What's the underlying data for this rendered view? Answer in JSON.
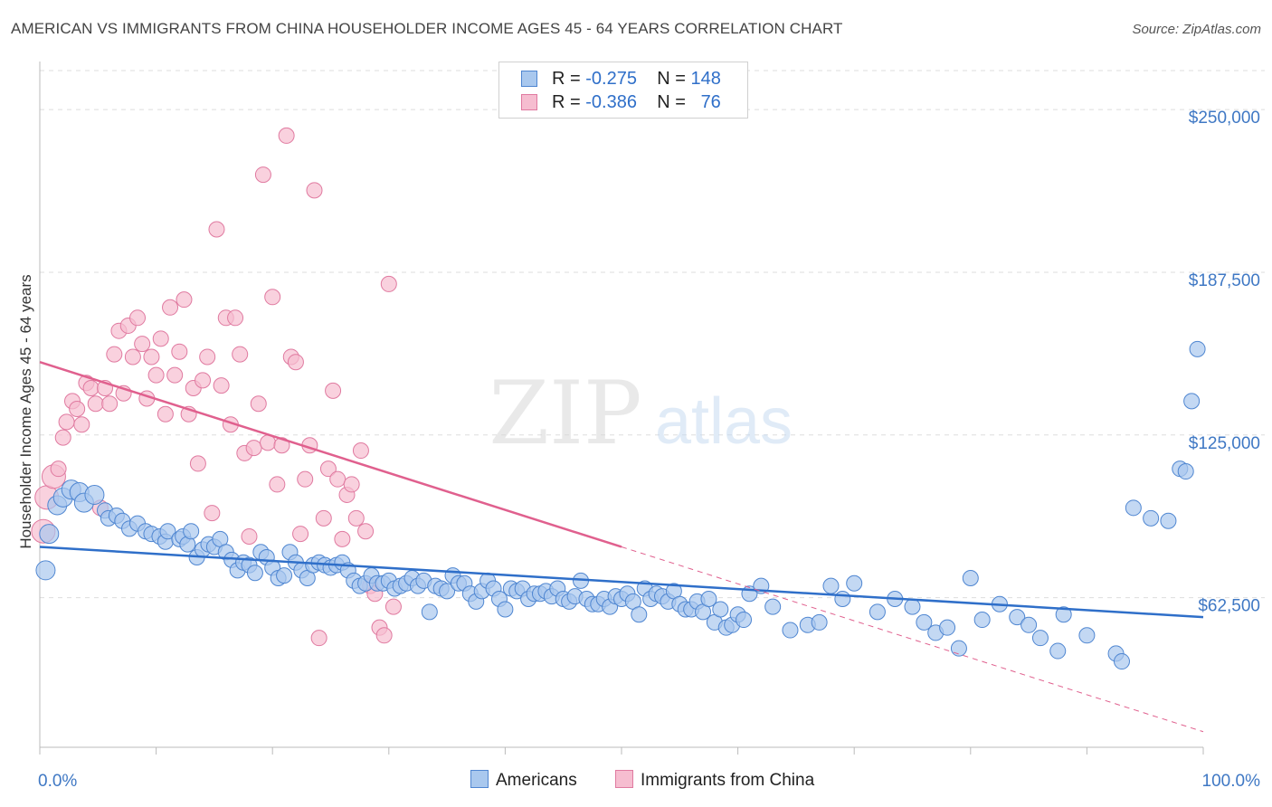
{
  "title": "AMERICAN VS IMMIGRANTS FROM CHINA HOUSEHOLDER INCOME AGES 45 - 64 YEARS CORRELATION CHART",
  "source": "Source: ZipAtlas.com",
  "watermark": {
    "zip": "ZIP",
    "atlas": "atlas"
  },
  "legend": {
    "r_label": "R =",
    "n_label": "N =",
    "rows": [
      {
        "name": "Americans",
        "r": "-0.275",
        "n": "148"
      },
      {
        "name": "Immigrants from China",
        "r": "-0.386",
        "n": "76"
      }
    ]
  },
  "colors": {
    "americans_fill": "#a9c8ee",
    "americans_stroke": "#4f86d1",
    "americans_line": "#2f6fc9",
    "china_fill": "#f6bdd0",
    "china_stroke": "#e07aa0",
    "china_line": "#e0608e",
    "tick_text": "#3f78c4",
    "grid": "#dddddd"
  },
  "chart_data": {
    "type": "scatter",
    "xlabel": "",
    "ylabel": "Householder Income Ages 45 - 64 years",
    "xlim": [
      0,
      100
    ],
    "ylim": [
      5000,
      265000
    ],
    "y_ticks": [
      62500,
      125000,
      187500,
      250000
    ],
    "y_tick_labels": [
      "$62,500",
      "$125,000",
      "$187,500",
      "$250,000"
    ],
    "x_tick_labels": [
      "0.0%",
      "100.0%"
    ],
    "grid": "horizontal dashed",
    "legend_position": "top-center",
    "series": [
      {
        "name": "Americans",
        "trend": {
          "x": [
            0,
            100
          ],
          "y": [
            82000,
            55000
          ]
        },
        "points": [
          [
            0.5,
            73
          ],
          [
            0.8,
            87
          ],
          [
            1.5,
            98
          ],
          [
            2.0,
            101
          ],
          [
            2.7,
            104
          ],
          [
            3.4,
            103
          ],
          [
            3.8,
            99
          ],
          [
            4.7,
            102
          ],
          [
            5.6,
            96
          ],
          [
            5.9,
            93
          ],
          [
            6.6,
            94
          ],
          [
            7.1,
            92
          ],
          [
            7.7,
            89
          ],
          [
            8.4,
            91
          ],
          [
            9.1,
            88
          ],
          [
            9.6,
            87
          ],
          [
            10.3,
            86
          ],
          [
            10.8,
            84
          ],
          [
            11.0,
            88
          ],
          [
            12.0,
            85
          ],
          [
            12.3,
            86
          ],
          [
            12.7,
            83
          ],
          [
            13.0,
            88
          ],
          [
            13.5,
            78
          ],
          [
            14.0,
            81
          ],
          [
            14.5,
            83
          ],
          [
            15.0,
            82
          ],
          [
            15.5,
            85
          ],
          [
            16.0,
            80
          ],
          [
            16.5,
            77
          ],
          [
            17.0,
            73
          ],
          [
            17.5,
            76
          ],
          [
            18.0,
            75
          ],
          [
            18.5,
            72
          ],
          [
            19.0,
            80
          ],
          [
            19.5,
            78
          ],
          [
            20.0,
            74
          ],
          [
            20.5,
            70
          ],
          [
            21.0,
            71
          ],
          [
            21.5,
            80
          ],
          [
            22.0,
            76
          ],
          [
            22.5,
            73
          ],
          [
            23.0,
            70
          ],
          [
            23.5,
            75
          ],
          [
            24.0,
            76
          ],
          [
            24.5,
            75
          ],
          [
            25.0,
            74
          ],
          [
            25.5,
            75
          ],
          [
            26.0,
            76
          ],
          [
            26.5,
            73
          ],
          [
            27.0,
            69
          ],
          [
            27.5,
            67
          ],
          [
            28.0,
            68
          ],
          [
            28.5,
            71
          ],
          [
            29.0,
            68
          ],
          [
            29.5,
            68
          ],
          [
            30.0,
            69
          ],
          [
            30.5,
            66
          ],
          [
            31.0,
            67
          ],
          [
            31.5,
            68
          ],
          [
            32.0,
            70
          ],
          [
            32.5,
            67
          ],
          [
            33.0,
            69
          ],
          [
            33.5,
            57
          ],
          [
            34.0,
            67
          ],
          [
            34.5,
            66
          ],
          [
            35.0,
            65
          ],
          [
            35.5,
            71
          ],
          [
            36.0,
            68
          ],
          [
            36.5,
            68
          ],
          [
            37.0,
            64
          ],
          [
            37.5,
            61
          ],
          [
            38.0,
            65
          ],
          [
            38.5,
            69
          ],
          [
            39.0,
            66
          ],
          [
            39.5,
            62
          ],
          [
            40.0,
            58
          ],
          [
            40.5,
            66
          ],
          [
            41.0,
            65
          ],
          [
            41.5,
            66
          ],
          [
            42.0,
            62
          ],
          [
            42.5,
            64
          ],
          [
            43.0,
            64
          ],
          [
            43.5,
            65
          ],
          [
            44.0,
            63
          ],
          [
            44.5,
            66
          ],
          [
            45.0,
            62
          ],
          [
            45.5,
            61
          ],
          [
            46.0,
            63
          ],
          [
            46.5,
            69
          ],
          [
            47.0,
            62
          ],
          [
            47.5,
            60
          ],
          [
            48.0,
            60
          ],
          [
            48.5,
            62
          ],
          [
            49.0,
            59
          ],
          [
            49.5,
            63
          ],
          [
            50.0,
            62
          ],
          [
            50.5,
            64
          ],
          [
            51.0,
            61
          ],
          [
            51.5,
            56
          ],
          [
            52.0,
            66
          ],
          [
            52.5,
            62
          ],
          [
            53.0,
            64
          ],
          [
            53.5,
            63
          ],
          [
            54.0,
            61
          ],
          [
            54.5,
            65
          ],
          [
            55.0,
            60
          ],
          [
            55.5,
            58
          ],
          [
            56.0,
            58
          ],
          [
            56.5,
            61
          ],
          [
            57.0,
            57
          ],
          [
            57.5,
            62
          ],
          [
            58.0,
            53
          ],
          [
            58.5,
            58
          ],
          [
            59.0,
            51
          ],
          [
            59.5,
            52
          ],
          [
            60.0,
            56
          ],
          [
            60.5,
            54
          ],
          [
            61.0,
            64
          ],
          [
            62.0,
            67
          ],
          [
            63.0,
            59
          ],
          [
            64.5,
            50
          ],
          [
            66.0,
            52
          ],
          [
            67.0,
            53
          ],
          [
            68.0,
            67
          ],
          [
            69.0,
            62
          ],
          [
            70.0,
            68
          ],
          [
            72.0,
            57
          ],
          [
            73.5,
            62
          ],
          [
            75.0,
            59
          ],
          [
            76.0,
            53
          ],
          [
            77.0,
            49
          ],
          [
            78.0,
            51
          ],
          [
            79.0,
            43
          ],
          [
            80.0,
            70
          ],
          [
            81.0,
            54
          ],
          [
            82.5,
            60
          ],
          [
            84.0,
            55
          ],
          [
            85.0,
            52
          ],
          [
            86.0,
            47
          ],
          [
            87.5,
            42
          ],
          [
            88.0,
            56
          ],
          [
            90.0,
            48
          ],
          [
            92.5,
            41
          ],
          [
            93.0,
            38
          ],
          [
            94.0,
            97
          ],
          [
            95.5,
            93
          ],
          [
            97.0,
            92
          ],
          [
            98.0,
            112
          ],
          [
            98.5,
            111
          ],
          [
            99.0,
            138
          ],
          [
            99.5,
            158
          ]
        ]
      },
      {
        "name": "Immigrants from China",
        "trend": {
          "x": [
            0,
            50
          ],
          "y": [
            153000,
            82000
          ]
        },
        "trend_extension": {
          "x": [
            50,
            100
          ],
          "y": [
            82000,
            11000
          ]
        },
        "points": [
          [
            0.3,
            88
          ],
          [
            0.6,
            101
          ],
          [
            1.2,
            109
          ],
          [
            1.6,
            112
          ],
          [
            2.0,
            124
          ],
          [
            2.3,
            130
          ],
          [
            2.8,
            138
          ],
          [
            3.2,
            135
          ],
          [
            3.6,
            129
          ],
          [
            4.0,
            145
          ],
          [
            4.4,
            143
          ],
          [
            4.8,
            137
          ],
          [
            5.2,
            97
          ],
          [
            5.6,
            143
          ],
          [
            6.0,
            137
          ],
          [
            6.4,
            156
          ],
          [
            6.8,
            165
          ],
          [
            7.2,
            141
          ],
          [
            7.6,
            167
          ],
          [
            8.0,
            155
          ],
          [
            8.4,
            170
          ],
          [
            8.8,
            160
          ],
          [
            9.2,
            139
          ],
          [
            9.6,
            155
          ],
          [
            10.0,
            148
          ],
          [
            10.4,
            162
          ],
          [
            10.8,
            133
          ],
          [
            11.2,
            174
          ],
          [
            11.6,
            148
          ],
          [
            12.0,
            157
          ],
          [
            12.4,
            177
          ],
          [
            12.8,
            133
          ],
          [
            13.2,
            143
          ],
          [
            13.6,
            114
          ],
          [
            14.0,
            146
          ],
          [
            14.4,
            155
          ],
          [
            14.8,
            95
          ],
          [
            15.2,
            204
          ],
          [
            15.6,
            144
          ],
          [
            16.0,
            170
          ],
          [
            16.4,
            129
          ],
          [
            16.8,
            170
          ],
          [
            17.2,
            156
          ],
          [
            17.6,
            118
          ],
          [
            18.0,
            86
          ],
          [
            18.4,
            120
          ],
          [
            18.8,
            137
          ],
          [
            19.2,
            225
          ],
          [
            19.6,
            122
          ],
          [
            20.0,
            178
          ],
          [
            20.4,
            106
          ],
          [
            20.8,
            121
          ],
          [
            21.2,
            240
          ],
          [
            21.6,
            155
          ],
          [
            22.0,
            153
          ],
          [
            22.4,
            87
          ],
          [
            22.8,
            108
          ],
          [
            23.2,
            121
          ],
          [
            23.6,
            219
          ],
          [
            24.0,
            47
          ],
          [
            24.4,
            93
          ],
          [
            24.8,
            112
          ],
          [
            25.2,
            142
          ],
          [
            25.6,
            108
          ],
          [
            26.0,
            85
          ],
          [
            26.4,
            102
          ],
          [
            26.8,
            106
          ],
          [
            27.2,
            93
          ],
          [
            27.6,
            119
          ],
          [
            28.0,
            88
          ],
          [
            28.4,
            67
          ],
          [
            28.8,
            64
          ],
          [
            29.2,
            51
          ],
          [
            29.6,
            48
          ],
          [
            30.0,
            183
          ],
          [
            30.4,
            59
          ]
        ]
      }
    ]
  }
}
